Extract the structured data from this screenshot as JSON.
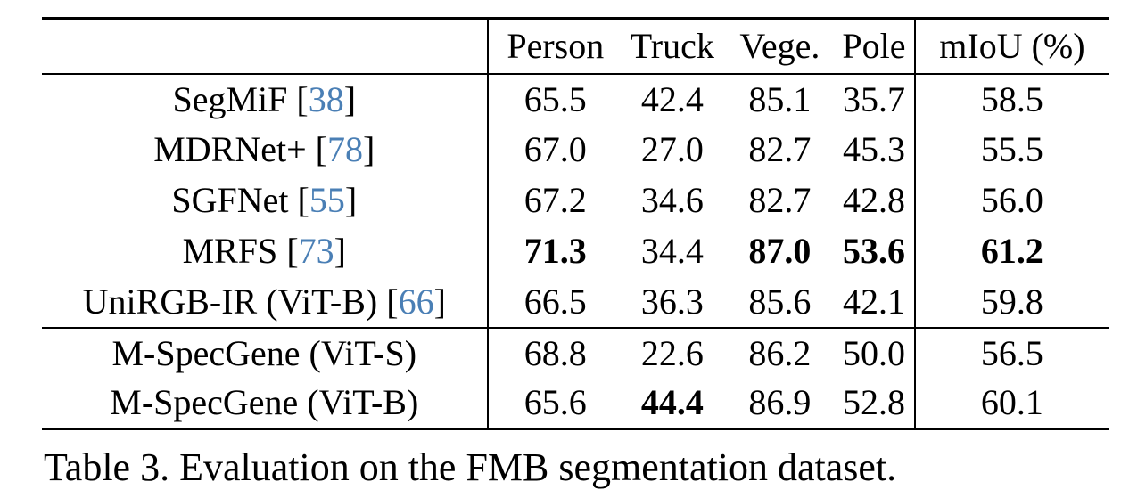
{
  "table": {
    "headers": [
      "",
      "Person",
      "Truck",
      "Vege.",
      "Pole",
      "mIoU (%)"
    ],
    "rows": [
      {
        "method": "SegMiF",
        "ref": "38",
        "values": [
          "65.5",
          "42.4",
          "85.1",
          "35.7",
          "58.5"
        ],
        "bold": [
          false,
          false,
          false,
          false,
          false
        ]
      },
      {
        "method": "MDRNet+",
        "ref": "78",
        "values": [
          "67.0",
          "27.0",
          "82.7",
          "45.3",
          "55.5"
        ],
        "bold": [
          false,
          false,
          false,
          false,
          false
        ]
      },
      {
        "method": "SGFNet",
        "ref": "55",
        "values": [
          "67.2",
          "34.6",
          "82.7",
          "42.8",
          "56.0"
        ],
        "bold": [
          false,
          false,
          false,
          false,
          false
        ]
      },
      {
        "method": "MRFS",
        "ref": "73",
        "values": [
          "71.3",
          "34.4",
          "87.0",
          "53.6",
          "61.2"
        ],
        "bold": [
          true,
          false,
          true,
          true,
          true
        ]
      },
      {
        "method": "UniRGB-IR (ViT-B)",
        "ref": "66",
        "values": [
          "66.5",
          "36.3",
          "85.6",
          "42.1",
          "59.8"
        ],
        "bold": [
          false,
          false,
          false,
          false,
          false
        ]
      },
      {
        "method": "M-SpecGene (ViT-S)",
        "ref": "",
        "values": [
          "68.8",
          "22.6",
          "86.2",
          "50.0",
          "56.5"
        ],
        "bold": [
          false,
          false,
          false,
          false,
          false
        ]
      },
      {
        "method": "M-SpecGene (ViT-B)",
        "ref": "",
        "values": [
          "65.6",
          "44.4",
          "86.9",
          "52.8",
          "60.1"
        ],
        "bold": [
          false,
          true,
          false,
          false,
          false
        ]
      }
    ]
  },
  "caption": "Table 3. Evaluation on the FMB segmentation dataset."
}
